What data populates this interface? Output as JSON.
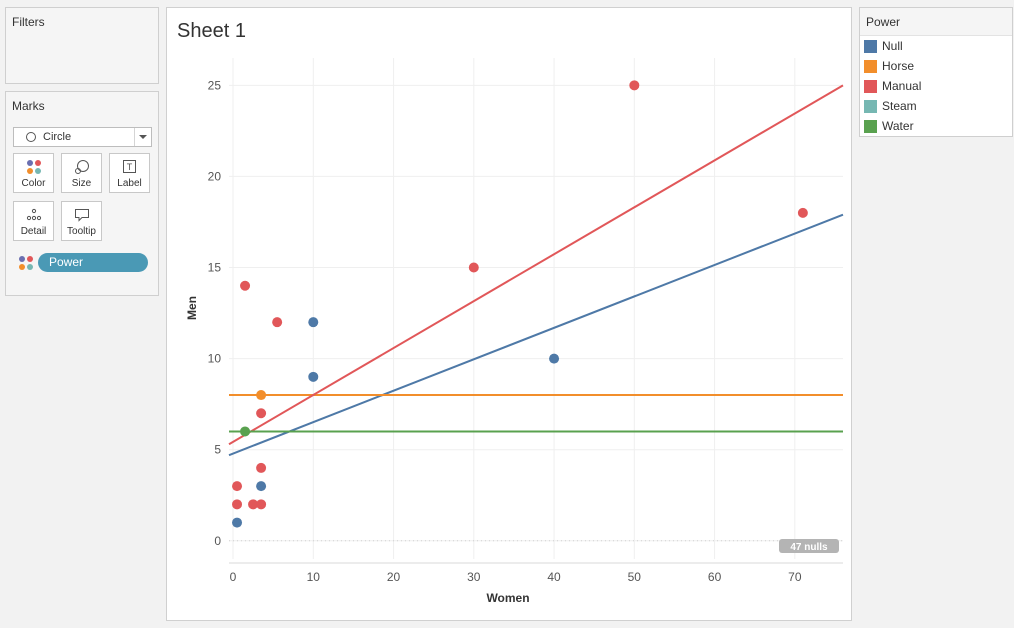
{
  "filters": {
    "title": "Filters"
  },
  "marks": {
    "title": "Marks",
    "mark_type": "Circle",
    "buttons": {
      "color": "Color",
      "size": "Size",
      "label": "Label",
      "detail": "Detail",
      "tooltip": "Tooltip"
    },
    "color_pill": "Power"
  },
  "sheet": {
    "title": "Sheet 1"
  },
  "legend": {
    "title": "Power",
    "items": [
      {
        "label": "Null",
        "color": "#4e79a7"
      },
      {
        "label": "Horse",
        "color": "#f28e2b"
      },
      {
        "label": "Manual",
        "color": "#e15759"
      },
      {
        "label": "Steam",
        "color": "#76b7b2"
      },
      {
        "label": "Water",
        "color": "#59a14f"
      }
    ]
  },
  "chart_data": {
    "type": "scatter",
    "xlabel": "Women",
    "ylabel": "Men",
    "xlim": [
      -0.5,
      76
    ],
    "ylim": [
      -1,
      26.5
    ],
    "xticks": [
      0,
      10,
      20,
      30,
      40,
      50,
      60,
      70
    ],
    "yticks": [
      0,
      5,
      10,
      15,
      20,
      25
    ],
    "grid": true,
    "nulls_label": "47 nulls",
    "series": [
      {
        "name": "Null",
        "color": "#4e79a7",
        "points": [
          [
            10,
            12
          ],
          [
            10,
            9
          ],
          [
            40,
            10
          ],
          [
            3.5,
            3
          ],
          [
            0.5,
            1
          ]
        ],
        "trend": [
          [
            -0.5,
            4.7
          ],
          [
            76,
            17.9
          ]
        ]
      },
      {
        "name": "Horse",
        "color": "#f28e2b",
        "points": [
          [
            3.5,
            8
          ]
        ],
        "trend": [
          [
            -0.5,
            8
          ],
          [
            76,
            8
          ]
        ]
      },
      {
        "name": "Manual",
        "color": "#e15759",
        "points": [
          [
            50,
            25
          ],
          [
            71,
            18
          ],
          [
            30,
            15
          ],
          [
            1.5,
            14
          ],
          [
            5.5,
            12
          ],
          [
            3.5,
            7
          ],
          [
            3.5,
            4
          ],
          [
            0.5,
            3
          ],
          [
            0.5,
            2
          ],
          [
            2.5,
            2
          ],
          [
            3.5,
            2
          ]
        ],
        "trend": [
          [
            -0.5,
            5.3
          ],
          [
            76,
            25
          ]
        ]
      },
      {
        "name": "Water",
        "color": "#59a14f",
        "points": [
          [
            1.5,
            6
          ]
        ],
        "trend": [
          [
            -0.5,
            6
          ],
          [
            76,
            6
          ]
        ]
      }
    ]
  }
}
